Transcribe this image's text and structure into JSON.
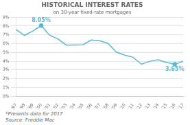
{
  "chart_data": {
    "type": "line",
    "title": "HISTORICAL INTEREST RATES",
    "subtitle": "on 30-year fixed-rate mortgages",
    "footnotes": [
      "*Presents data for 2017",
      "Source: Freddie Mac"
    ],
    "categories": [
      "'97",
      "'98",
      "'99",
      "'00",
      "'01",
      "'02",
      "'03",
      "'04",
      "'05",
      "'06",
      "'07",
      "'08",
      "'09",
      "'10",
      "'11",
      "'12",
      "'13",
      "'14",
      "'15",
      "'16",
      "'17"
    ],
    "values": [
      7.6,
      6.94,
      7.44,
      8.05,
      6.97,
      6.54,
      5.83,
      5.84,
      5.87,
      6.41,
      6.34,
      6.03,
      5.04,
      4.69,
      4.45,
      3.66,
      3.98,
      4.17,
      3.85,
      3.65,
      3.99
    ],
    "color": "#5ab8d8",
    "ylim": [
      0,
      9
    ],
    "yticks": [
      {
        "value": 0,
        "label": "0%"
      },
      {
        "value": 1,
        "label": "1%"
      },
      {
        "value": 2,
        "label": "2%"
      },
      {
        "value": 3,
        "label": "3%"
      },
      {
        "value": 4,
        "label": "4%"
      },
      {
        "value": 5,
        "label": "5%"
      },
      {
        "value": 6,
        "label": "6%"
      },
      {
        "value": 7,
        "label": "7%"
      },
      {
        "value": 8,
        "label": "8%"
      },
      {
        "value": 9,
        "label": "9%"
      }
    ],
    "grid": true,
    "annotations": [
      {
        "x": "'00",
        "y": 8.05,
        "text": "8.05%"
      },
      {
        "x": "'16",
        "y": 3.65,
        "text": "3.65%"
      }
    ]
  }
}
